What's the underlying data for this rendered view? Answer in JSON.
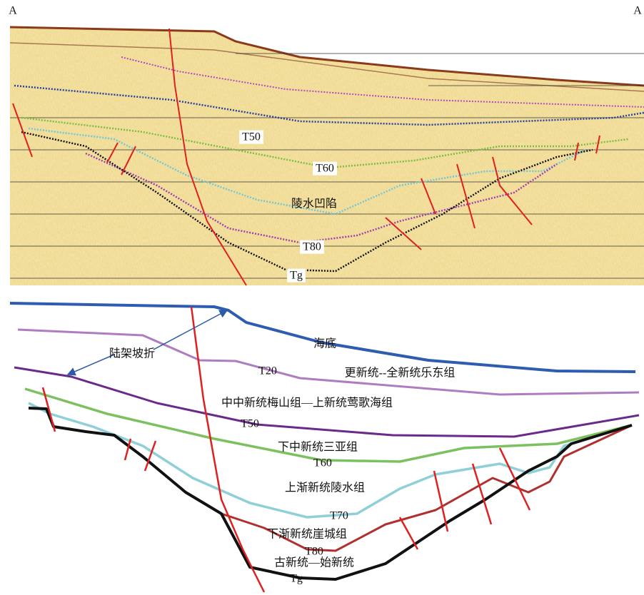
{
  "corners": {
    "left": "A",
    "right": "A"
  },
  "seismic_section": {
    "labels": [
      "T50",
      "T60",
      "陵水凹陷",
      "T80",
      "Tg"
    ]
  },
  "interpretation": {
    "labels": [
      "海底",
      "陆架坡折",
      "T20",
      "更新统--全新统乐东组",
      "中中新统梅山组—上新统莺歌海组",
      "T50",
      "下中新统三亚组",
      "T60",
      "上渐新统陵水组",
      "T70",
      "下渐新统崖城组",
      "T80",
      "古新统—始新统",
      "Tg"
    ]
  }
}
